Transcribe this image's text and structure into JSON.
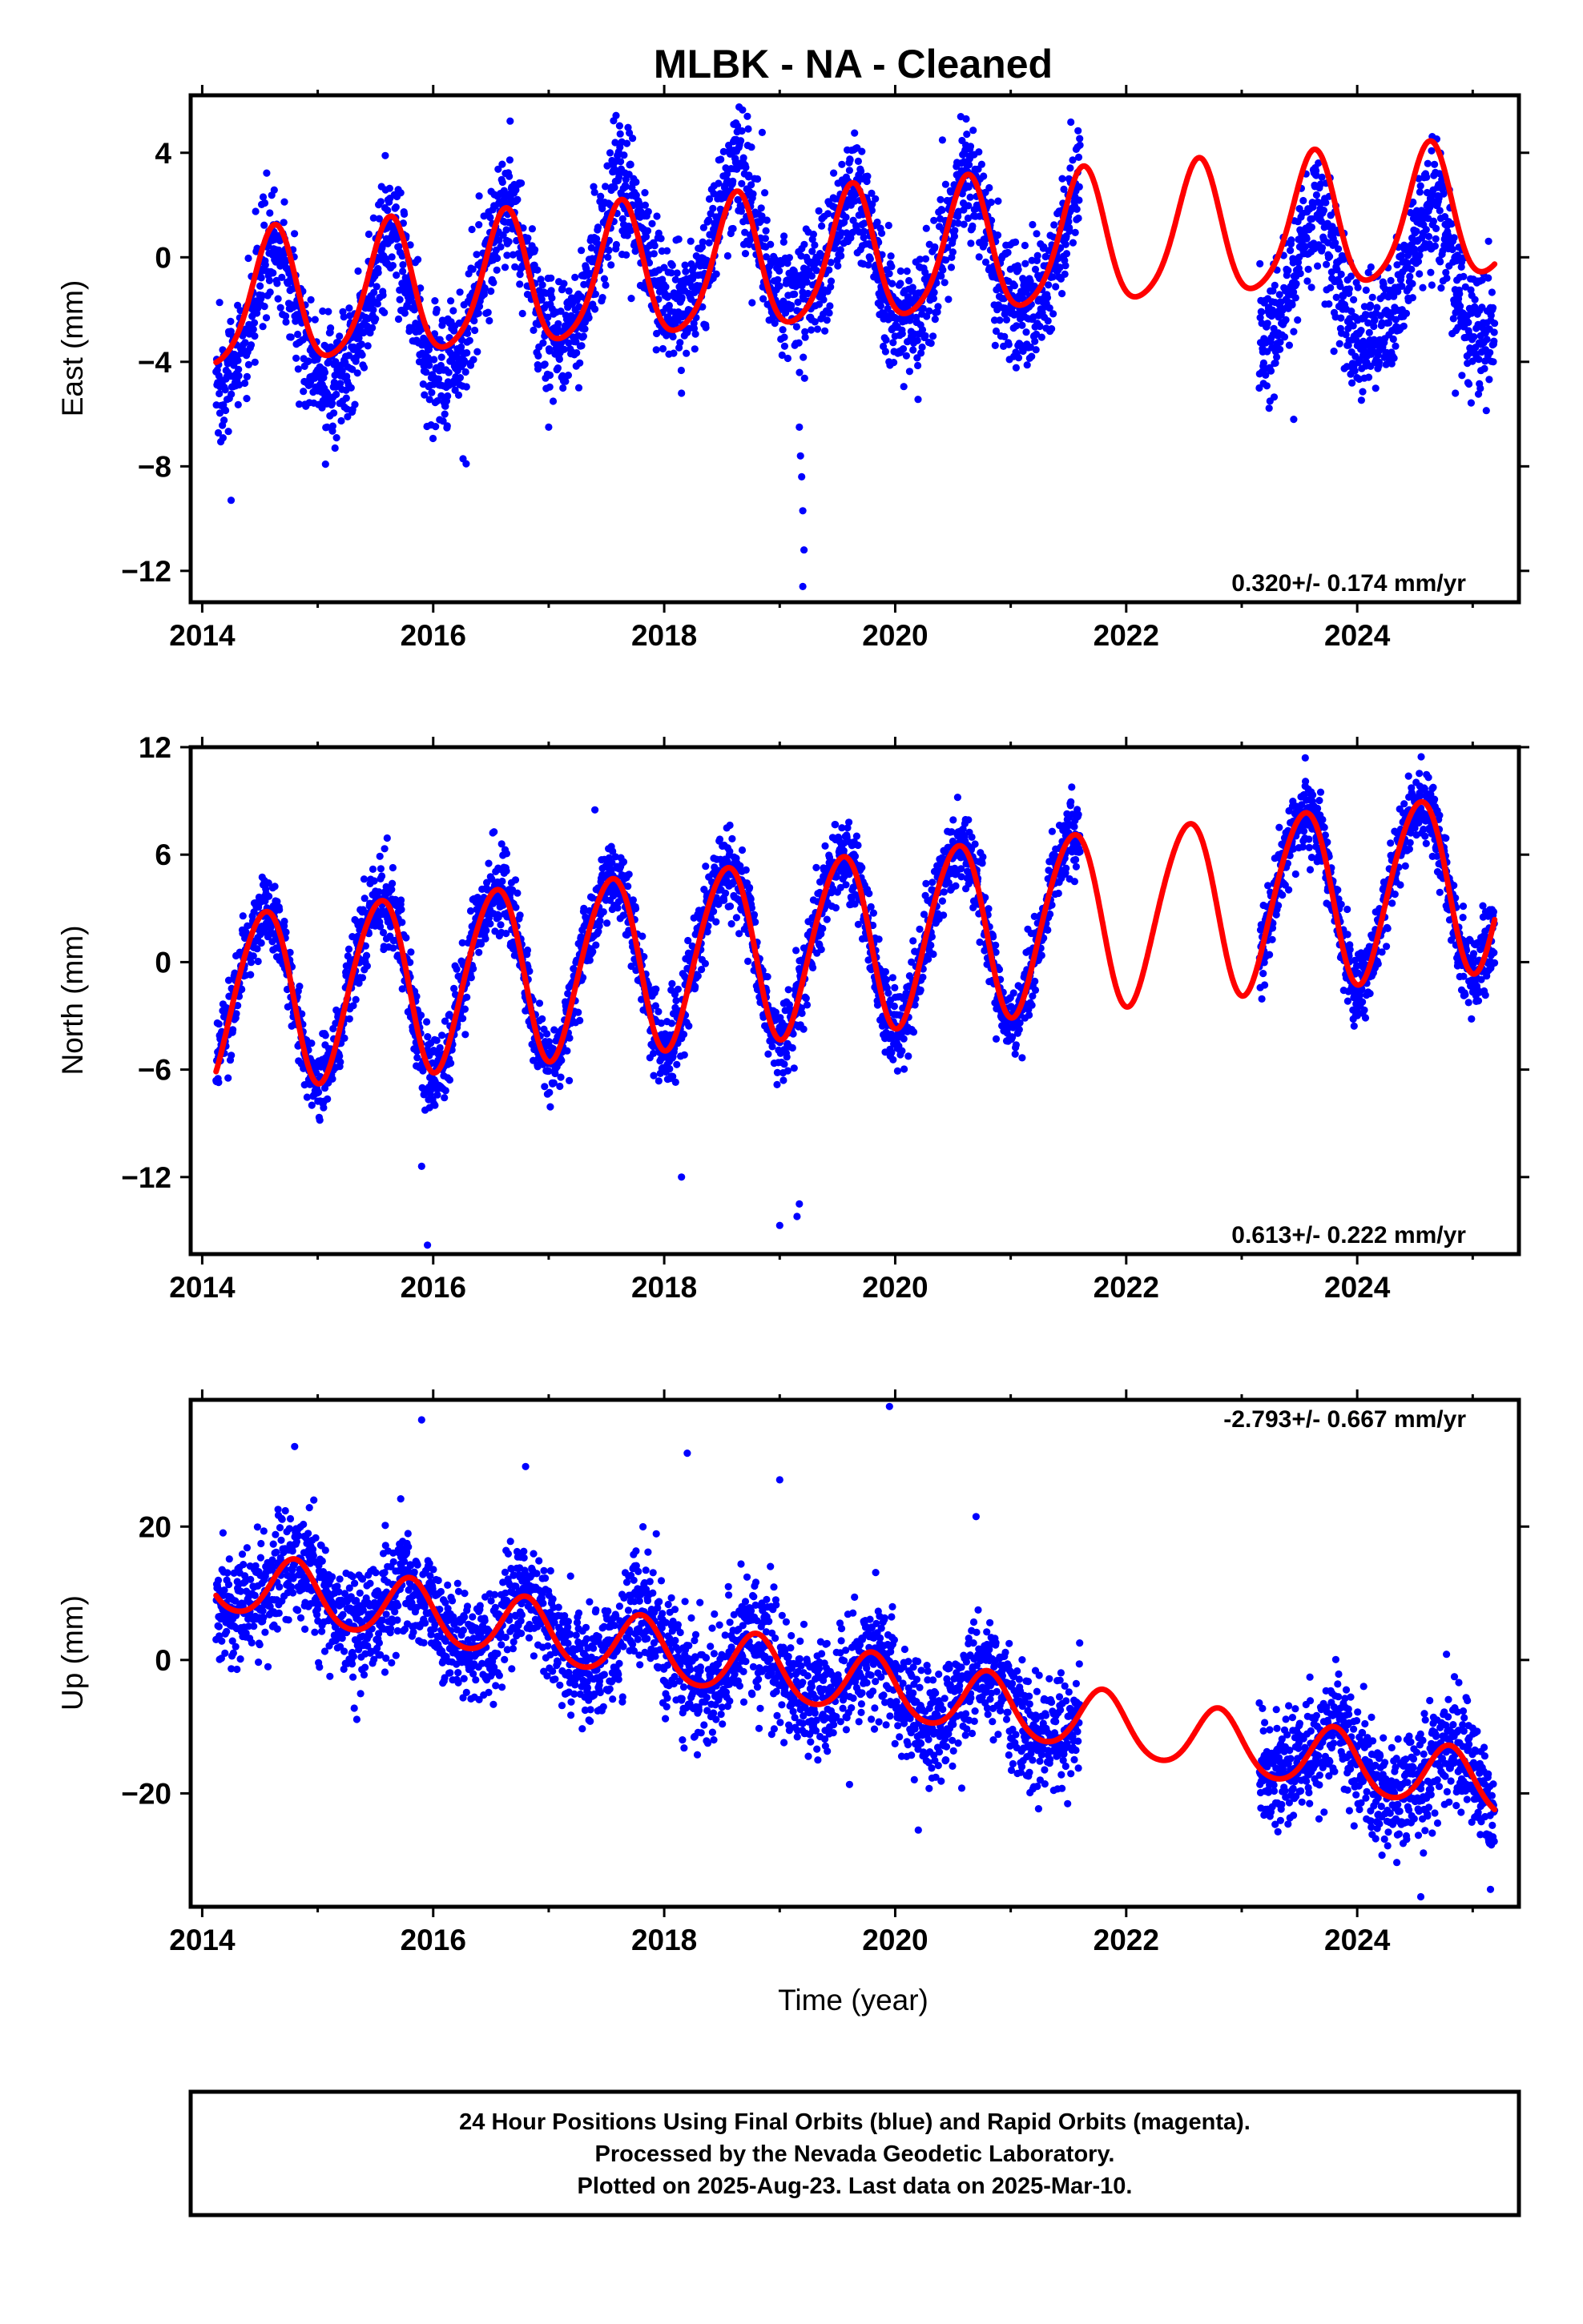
{
  "title": "MLBK  - NA - Cleaned",
  "xlabel": "Time (year)",
  "colors": {
    "final_orbits": "#0000ff",
    "model_fit": "#ff0000",
    "frame": "#000000"
  },
  "footer": {
    "line1": "24 Hour Positions Using Final Orbits (blue) and Rapid Orbits (magenta).",
    "line2": "Processed by the Nevada Geodetic Laboratory.",
    "line3": "Plotted on 2025-Aug-23. Last data on 2025-Mar-10."
  },
  "chart_data": [
    {
      "type": "scatter",
      "component": "east",
      "ylabel": "East (mm)",
      "xlim": [
        2013.9,
        2025.4
      ],
      "ylim": [
        -13.2,
        6.2
      ],
      "xticks": [
        2014,
        2016,
        2018,
        2020,
        2022,
        2024
      ],
      "xticklabels": [
        "2014",
        "2016",
        "2018",
        "2020",
        "2022",
        "2024"
      ],
      "yticks": [
        4,
        0,
        -4,
        -8,
        -12
      ],
      "yticklabels": [
        "4",
        "0",
        "−4",
        "−8",
        "−12"
      ],
      "rate_label": "0.320+/- 0.174 mm/yr",
      "data_span": [
        2014.12,
        2025.19
      ],
      "data_gap": [
        2021.6,
        2023.15
      ],
      "model": {
        "t0": 2014.1,
        "mean": -1.85,
        "trend": 0.32,
        "annual_amp": 2.55,
        "annual_peak": 0.62,
        "semiannual_amp": 0.4,
        "semiannual_peak": 0.15
      },
      "noise_sd": 1.15,
      "segment_offsets": [
        [
          2014.1,
          -1.0
        ],
        [
          2016.3,
          0.0
        ],
        [
          2017.3,
          0.8
        ],
        [
          2019.3,
          -0.2
        ],
        [
          2023.0,
          -2.4
        ]
      ],
      "outliers": [
        [
          2019.17,
          -6.5
        ],
        [
          2019.18,
          -7.6
        ],
        [
          2019.19,
          -8.4
        ],
        [
          2019.2,
          -9.7
        ],
        [
          2019.21,
          -11.2
        ],
        [
          2019.2,
          -12.6
        ],
        [
          2018.15,
          -5.2
        ],
        [
          2017.0,
          -6.5
        ],
        [
          2014.25,
          -9.3
        ],
        [
          2015.15,
          -7.3
        ],
        [
          2016.1,
          -6.0
        ],
        [
          2023.45,
          -6.2
        ],
        [
          2024.85,
          -5.2
        ]
      ]
    },
    {
      "type": "scatter",
      "component": "north",
      "ylabel": "North (mm)",
      "xlim": [
        2013.9,
        2025.4
      ],
      "ylim": [
        -16.3,
        12.0
      ],
      "xticks": [
        2014,
        2016,
        2018,
        2020,
        2022,
        2024
      ],
      "xticklabels": [
        "2014",
        "2016",
        "2018",
        "2020",
        "2022",
        "2024"
      ],
      "yticks": [
        12,
        6,
        0,
        -6,
        -12
      ],
      "yticklabels": [
        "12",
        "6",
        "0",
        "−6",
        "−12"
      ],
      "rate_label": "0.613+/- 0.222 mm/yr",
      "data_span": [
        2014.12,
        2025.19
      ],
      "data_gap": [
        2021.6,
        2023.15
      ],
      "model": {
        "t0": 2014.1,
        "mean": -2.2,
        "trend": 0.613,
        "annual_amp": 4.9,
        "annual_peak": 0.53,
        "semiannual_amp": 0.4,
        "semiannual_peak": 0.2
      },
      "noise_sd": 1.1,
      "segment_offsets": [
        [
          2014.1,
          0.0
        ]
      ],
      "outliers": [
        [
          2015.95,
          -15.8
        ],
        [
          2015.9,
          -11.4
        ],
        [
          2018.15,
          -12.0
        ],
        [
          2019.0,
          -14.7
        ],
        [
          2019.15,
          -14.2
        ],
        [
          2019.17,
          -13.5
        ],
        [
          2023.55,
          11.4
        ],
        [
          2017.4,
          8.5
        ]
      ]
    },
    {
      "type": "scatter",
      "component": "up",
      "ylabel": "Up (mm)",
      "xlim": [
        2013.9,
        2025.4
      ],
      "ylim": [
        -37.0,
        39.0
      ],
      "xticks": [
        2014,
        2016,
        2018,
        2020,
        2022,
        2024
      ],
      "xticklabels": [
        "2014",
        "2016",
        "2018",
        "2020",
        "2022",
        "2024"
      ],
      "yticks": [
        20,
        0,
        -20
      ],
      "yticklabels": [
        "20",
        "0",
        "−20"
      ],
      "rate_label": "-2.793+/- 0.667 mm/yr",
      "data_span": [
        2014.12,
        2025.19
      ],
      "data_gap": [
        2021.6,
        2023.15
      ],
      "model": {
        "t0": 2014.1,
        "mean": 12.0,
        "trend": -2.793,
        "annual_amp": 4.6,
        "annual_peak": 0.8,
        "semiannual_amp": 0.5,
        "semiannual_peak": 0.3
      },
      "noise_sd": 4.2,
      "segment_offsets": [
        [
          2014.1,
          0.0
        ]
      ],
      "outliers": [
        [
          2014.8,
          32.0
        ],
        [
          2015.9,
          36.0
        ],
        [
          2018.2,
          31.0
        ],
        [
          2016.8,
          29.0
        ],
        [
          2019.0,
          27.0
        ],
        [
          2019.95,
          38.0
        ],
        [
          2020.7,
          21.5
        ],
        [
          2024.55,
          -35.5
        ],
        [
          2020.2,
          -25.5
        ]
      ]
    }
  ]
}
